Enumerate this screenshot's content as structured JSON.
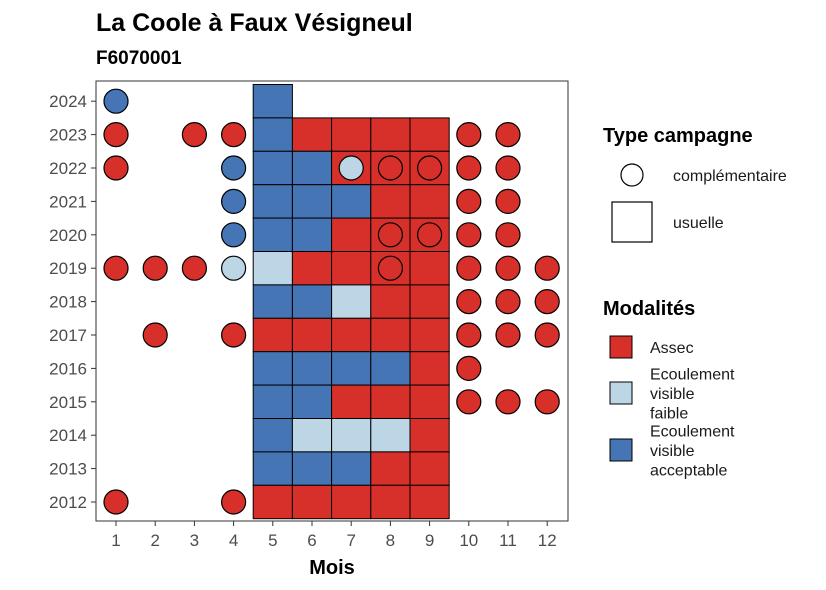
{
  "chart_data": {
    "type": "heatmap",
    "title": "La Coole à Faux Vésigneul",
    "subtitle": "F6070001",
    "xlabel": "Mois",
    "ylabel": "",
    "x_ticks": [
      "1",
      "2",
      "3",
      "4",
      "5",
      "6",
      "7",
      "8",
      "9",
      "10",
      "11",
      "12"
    ],
    "y_ticks": [
      "2012",
      "2013",
      "2014",
      "2015",
      "2016",
      "2017",
      "2018",
      "2019",
      "2020",
      "2021",
      "2022",
      "2023",
      "2024"
    ],
    "grid": false,
    "legend_position": "right",
    "colors": {
      "Assec": "#d7302a",
      "Ecoulement visible faible": "#bcd6e6",
      "Ecoulement visible acceptable": "#4575b4"
    },
    "legends": [
      {
        "title": "Type campagne",
        "items": [
          {
            "shape": "circle",
            "label": "complémentaire"
          },
          {
            "shape": "square",
            "label": "usuelle"
          }
        ]
      },
      {
        "title": "Modalités",
        "items": [
          {
            "key": "Assec",
            "lines": [
              "Assec"
            ]
          },
          {
            "key": "Ecoulement visible faible",
            "lines": [
              "Ecoulement",
              "visible",
              "faible"
            ]
          },
          {
            "key": "Ecoulement visible acceptable",
            "lines": [
              "Ecoulement",
              "visible",
              "acceptable"
            ]
          }
        ]
      }
    ],
    "usuelle": [
      {
        "year": 2024,
        "month": 5,
        "modalite": "Ecoulement visible acceptable"
      },
      {
        "year": 2023,
        "month": 5,
        "modalite": "Ecoulement visible acceptable"
      },
      {
        "year": 2023,
        "month": 6,
        "modalite": "Assec"
      },
      {
        "year": 2023,
        "month": 7,
        "modalite": "Assec"
      },
      {
        "year": 2023,
        "month": 8,
        "modalite": "Assec"
      },
      {
        "year": 2023,
        "month": 9,
        "modalite": "Assec"
      },
      {
        "year": 2022,
        "month": 5,
        "modalite": "Ecoulement visible acceptable"
      },
      {
        "year": 2022,
        "month": 6,
        "modalite": "Ecoulement visible acceptable"
      },
      {
        "year": 2022,
        "month": 7,
        "modalite": "Assec"
      },
      {
        "year": 2022,
        "month": 8,
        "modalite": "Assec"
      },
      {
        "year": 2022,
        "month": 9,
        "modalite": "Assec"
      },
      {
        "year": 2021,
        "month": 5,
        "modalite": "Ecoulement visible acceptable"
      },
      {
        "year": 2021,
        "month": 6,
        "modalite": "Ecoulement visible acceptable"
      },
      {
        "year": 2021,
        "month": 7,
        "modalite": "Ecoulement visible acceptable"
      },
      {
        "year": 2021,
        "month": 8,
        "modalite": "Assec"
      },
      {
        "year": 2021,
        "month": 9,
        "modalite": "Assec"
      },
      {
        "year": 2020,
        "month": 5,
        "modalite": "Ecoulement visible acceptable"
      },
      {
        "year": 2020,
        "month": 6,
        "modalite": "Ecoulement visible acceptable"
      },
      {
        "year": 2020,
        "month": 7,
        "modalite": "Assec"
      },
      {
        "year": 2020,
        "month": 8,
        "modalite": "Assec"
      },
      {
        "year": 2020,
        "month": 9,
        "modalite": "Assec"
      },
      {
        "year": 2019,
        "month": 5,
        "modalite": "Ecoulement visible faible"
      },
      {
        "year": 2019,
        "month": 6,
        "modalite": "Assec"
      },
      {
        "year": 2019,
        "month": 7,
        "modalite": "Assec"
      },
      {
        "year": 2019,
        "month": 8,
        "modalite": "Assec"
      },
      {
        "year": 2019,
        "month": 9,
        "modalite": "Assec"
      },
      {
        "year": 2018,
        "month": 5,
        "modalite": "Ecoulement visible acceptable"
      },
      {
        "year": 2018,
        "month": 6,
        "modalite": "Ecoulement visible acceptable"
      },
      {
        "year": 2018,
        "month": 7,
        "modalite": "Ecoulement visible faible"
      },
      {
        "year": 2018,
        "month": 8,
        "modalite": "Assec"
      },
      {
        "year": 2018,
        "month": 9,
        "modalite": "Assec"
      },
      {
        "year": 2017,
        "month": 5,
        "modalite": "Assec"
      },
      {
        "year": 2017,
        "month": 6,
        "modalite": "Assec"
      },
      {
        "year": 2017,
        "month": 7,
        "modalite": "Assec"
      },
      {
        "year": 2017,
        "month": 8,
        "modalite": "Assec"
      },
      {
        "year": 2017,
        "month": 9,
        "modalite": "Assec"
      },
      {
        "year": 2016,
        "month": 5,
        "modalite": "Ecoulement visible acceptable"
      },
      {
        "year": 2016,
        "month": 6,
        "modalite": "Ecoulement visible acceptable"
      },
      {
        "year": 2016,
        "month": 7,
        "modalite": "Ecoulement visible acceptable"
      },
      {
        "year": 2016,
        "month": 8,
        "modalite": "Ecoulement visible acceptable"
      },
      {
        "year": 2016,
        "month": 9,
        "modalite": "Assec"
      },
      {
        "year": 2015,
        "month": 5,
        "modalite": "Ecoulement visible acceptable"
      },
      {
        "year": 2015,
        "month": 6,
        "modalite": "Ecoulement visible acceptable"
      },
      {
        "year": 2015,
        "month": 7,
        "modalite": "Assec"
      },
      {
        "year": 2015,
        "month": 8,
        "modalite": "Assec"
      },
      {
        "year": 2015,
        "month": 9,
        "modalite": "Assec"
      },
      {
        "year": 2014,
        "month": 5,
        "modalite": "Ecoulement visible acceptable"
      },
      {
        "year": 2014,
        "month": 6,
        "modalite": "Ecoulement visible faible"
      },
      {
        "year": 2014,
        "month": 7,
        "modalite": "Ecoulement visible faible"
      },
      {
        "year": 2014,
        "month": 8,
        "modalite": "Ecoulement visible faible"
      },
      {
        "year": 2014,
        "month": 9,
        "modalite": "Assec"
      },
      {
        "year": 2013,
        "month": 5,
        "modalite": "Ecoulement visible acceptable"
      },
      {
        "year": 2013,
        "month": 6,
        "modalite": "Ecoulement visible acceptable"
      },
      {
        "year": 2013,
        "month": 7,
        "modalite": "Ecoulement visible acceptable"
      },
      {
        "year": 2013,
        "month": 8,
        "modalite": "Assec"
      },
      {
        "year": 2013,
        "month": 9,
        "modalite": "Assec"
      },
      {
        "year": 2012,
        "month": 5,
        "modalite": "Assec"
      },
      {
        "year": 2012,
        "month": 6,
        "modalite": "Assec"
      },
      {
        "year": 2012,
        "month": 7,
        "modalite": "Assec"
      },
      {
        "year": 2012,
        "month": 8,
        "modalite": "Assec"
      },
      {
        "year": 2012,
        "month": 9,
        "modalite": "Assec"
      }
    ],
    "complementaire": [
      {
        "year": 2024,
        "month": 1,
        "modalite": "Ecoulement visible acceptable"
      },
      {
        "year": 2023,
        "month": 1,
        "modalite": "Assec"
      },
      {
        "year": 2023,
        "month": 3,
        "modalite": "Assec"
      },
      {
        "year": 2023,
        "month": 4,
        "modalite": "Assec"
      },
      {
        "year": 2023,
        "month": 10,
        "modalite": "Assec"
      },
      {
        "year": 2023,
        "month": 11,
        "modalite": "Assec"
      },
      {
        "year": 2022,
        "month": 1,
        "modalite": "Assec"
      },
      {
        "year": 2022,
        "month": 4,
        "modalite": "Ecoulement visible acceptable"
      },
      {
        "year": 2022,
        "month": 7,
        "modalite": "Ecoulement visible faible"
      },
      {
        "year": 2022,
        "month": 8,
        "modalite": "Assec"
      },
      {
        "year": 2022,
        "month": 9,
        "modalite": "Assec"
      },
      {
        "year": 2022,
        "month": 10,
        "modalite": "Assec"
      },
      {
        "year": 2022,
        "month": 11,
        "modalite": "Assec"
      },
      {
        "year": 2021,
        "month": 4,
        "modalite": "Ecoulement visible acceptable"
      },
      {
        "year": 2021,
        "month": 10,
        "modalite": "Assec"
      },
      {
        "year": 2021,
        "month": 11,
        "modalite": "Assec"
      },
      {
        "year": 2020,
        "month": 4,
        "modalite": "Ecoulement visible acceptable"
      },
      {
        "year": 2020,
        "month": 8,
        "modalite": "Assec"
      },
      {
        "year": 2020,
        "month": 9,
        "modalite": "Assec"
      },
      {
        "year": 2020,
        "month": 10,
        "modalite": "Assec"
      },
      {
        "year": 2020,
        "month": 11,
        "modalite": "Assec"
      },
      {
        "year": 2019,
        "month": 1,
        "modalite": "Assec"
      },
      {
        "year": 2019,
        "month": 2,
        "modalite": "Assec"
      },
      {
        "year": 2019,
        "month": 3,
        "modalite": "Assec"
      },
      {
        "year": 2019,
        "month": 4,
        "modalite": "Ecoulement visible faible"
      },
      {
        "year": 2019,
        "month": 8,
        "modalite": "Assec"
      },
      {
        "year": 2019,
        "month": 10,
        "modalite": "Assec"
      },
      {
        "year": 2019,
        "month": 11,
        "modalite": "Assec"
      },
      {
        "year": 2019,
        "month": 12,
        "modalite": "Assec"
      },
      {
        "year": 2018,
        "month": 10,
        "modalite": "Assec"
      },
      {
        "year": 2018,
        "month": 11,
        "modalite": "Assec"
      },
      {
        "year": 2018,
        "month": 12,
        "modalite": "Assec"
      },
      {
        "year": 2017,
        "month": 2,
        "modalite": "Assec"
      },
      {
        "year": 2017,
        "month": 4,
        "modalite": "Assec"
      },
      {
        "year": 2017,
        "month": 10,
        "modalite": "Assec"
      },
      {
        "year": 2017,
        "month": 11,
        "modalite": "Assec"
      },
      {
        "year": 2017,
        "month": 12,
        "modalite": "Assec"
      },
      {
        "year": 2016,
        "month": 10,
        "modalite": "Assec"
      },
      {
        "year": 2015,
        "month": 10,
        "modalite": "Assec"
      },
      {
        "year": 2015,
        "month": 11,
        "modalite": "Assec"
      },
      {
        "year": 2015,
        "month": 12,
        "modalite": "Assec"
      },
      {
        "year": 2012,
        "month": 1,
        "modalite": "Assec"
      },
      {
        "year": 2012,
        "month": 4,
        "modalite": "Assec"
      }
    ]
  }
}
